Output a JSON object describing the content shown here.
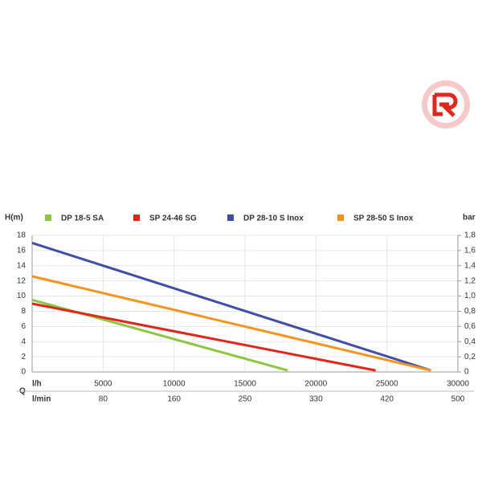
{
  "chart_data": {
    "type": "line",
    "y_label": "H(m)",
    "y2_label": "bar",
    "x_label": "l/h",
    "x_group_label": "Q",
    "x2_label": "l/min",
    "xlim": [
      0,
      30000
    ],
    "xticks": [
      5000,
      10000,
      15000,
      20000,
      25000,
      30000
    ],
    "x2ticks": [
      80,
      160,
      250,
      330,
      420,
      500
    ],
    "ylim": [
      0,
      18
    ],
    "yticks": [
      0,
      2,
      4,
      6,
      8,
      10,
      12,
      14,
      16,
      18
    ],
    "y2lim": [
      0,
      1.8
    ],
    "y2ticks": [
      0,
      {
        "value": 0.2,
        "label": "0,2"
      },
      {
        "value": 0.4,
        "label": "0,4"
      },
      {
        "value": 0.6,
        "label": "0,6"
      },
      {
        "value": 0.8,
        "label": "0,8"
      },
      {
        "value": 1.0,
        "label": "1,0"
      },
      {
        "value": 1.2,
        "label": "1,2"
      },
      {
        "value": 1.4,
        "label": "1,4"
      },
      {
        "value": 1.6,
        "label": "1,6"
      },
      {
        "value": 1.8,
        "label": "1,8"
      }
    ],
    "grid": true,
    "series": [
      {
        "name": "DP 18-5 SA",
        "color": "#8dc63f",
        "x": [
          0,
          18000
        ],
        "values": [
          9.5,
          0.2
        ]
      },
      {
        "name": "SP 24-46 SG",
        "color": "#e2261c",
        "x": [
          0,
          24200
        ],
        "values": [
          9,
          0.2
        ]
      },
      {
        "name": "DP 28-10 S Inox",
        "color": "#3f4fa8",
        "x": [
          0,
          28100
        ],
        "values": [
          17,
          0.2
        ]
      },
      {
        "name": "SP 28-50 S Inox",
        "color": "#f7941d",
        "x": [
          0,
          28100
        ],
        "values": [
          12.6,
          0.2
        ]
      }
    ]
  }
}
